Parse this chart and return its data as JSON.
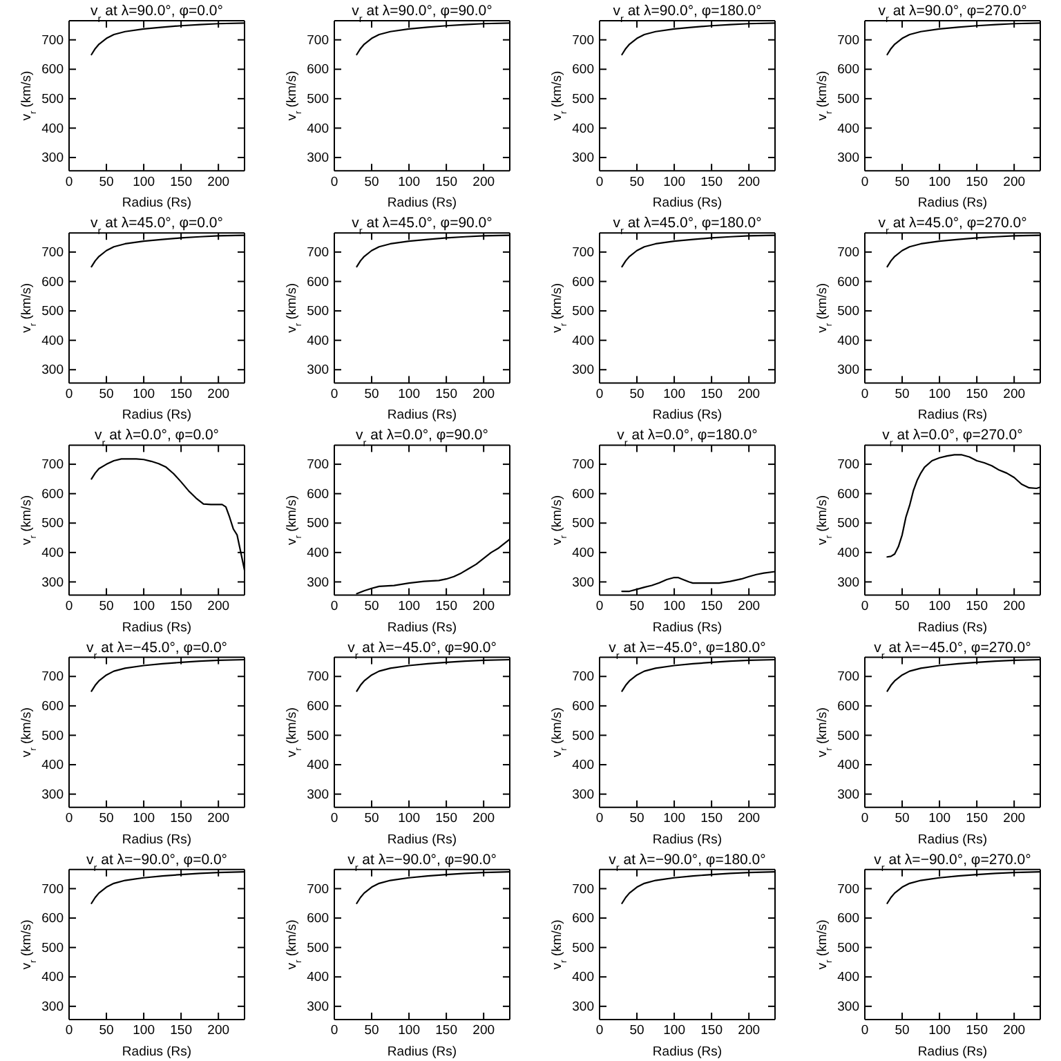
{
  "chart_data": [
    {
      "type": "line",
      "title": "v$_{r}$ at λ=90.0°, φ=0.0°",
      "xlabel": "Radius (Rs)",
      "ylabel": "v$_{r}$ (km/s)",
      "xlim": [
        0,
        235
      ],
      "ylim": [
        255,
        765
      ],
      "xticks": [
        0,
        50,
        100,
        150,
        200
      ],
      "yticks": [
        300,
        400,
        500,
        600,
        700
      ],
      "x": [
        30,
        35,
        40,
        50,
        60,
        75,
        100,
        125,
        150,
        175,
        200,
        235
      ],
      "values": [
        650,
        670,
        685,
        705,
        718,
        728,
        737,
        743,
        748,
        752,
        755,
        757
      ],
      "color": "#000000"
    },
    {
      "type": "line",
      "title": "v$_{r}$ at λ=90.0°, φ=90.0°",
      "xlabel": "Radius (Rs)",
      "ylabel": "v$_{r}$ (km/s)",
      "xlim": [
        0,
        235
      ],
      "ylim": [
        255,
        765
      ],
      "xticks": [
        0,
        50,
        100,
        150,
        200
      ],
      "yticks": [
        300,
        400,
        500,
        600,
        700
      ],
      "x": [
        30,
        35,
        40,
        50,
        60,
        75,
        100,
        125,
        150,
        175,
        200,
        235
      ],
      "values": [
        650,
        670,
        685,
        705,
        718,
        728,
        737,
        743,
        748,
        752,
        755,
        757
      ],
      "color": "#000000"
    },
    {
      "type": "line",
      "title": "v$_{r}$ at λ=90.0°, φ=180.0°",
      "xlabel": "Radius (Rs)",
      "ylabel": "v$_{r}$ (km/s)",
      "xlim": [
        0,
        235
      ],
      "ylim": [
        255,
        765
      ],
      "xticks": [
        0,
        50,
        100,
        150,
        200
      ],
      "yticks": [
        300,
        400,
        500,
        600,
        700
      ],
      "x": [
        30,
        35,
        40,
        50,
        60,
        75,
        100,
        125,
        150,
        175,
        200,
        235
      ],
      "values": [
        650,
        670,
        685,
        705,
        718,
        728,
        737,
        743,
        748,
        752,
        755,
        757
      ],
      "color": "#000000"
    },
    {
      "type": "line",
      "title": "v$_{r}$ at λ=90.0°, φ=270.0°",
      "xlabel": "Radius (Rs)",
      "ylabel": "v$_{r}$ (km/s)",
      "xlim": [
        0,
        235
      ],
      "ylim": [
        255,
        765
      ],
      "xticks": [
        0,
        50,
        100,
        150,
        200
      ],
      "yticks": [
        300,
        400,
        500,
        600,
        700
      ],
      "x": [
        30,
        35,
        40,
        50,
        60,
        75,
        100,
        125,
        150,
        175,
        200,
        235
      ],
      "values": [
        650,
        670,
        685,
        705,
        718,
        728,
        737,
        743,
        748,
        752,
        755,
        757
      ],
      "color": "#000000"
    },
    {
      "type": "line",
      "title": "v$_{r}$ at λ=45.0°, φ=0.0°",
      "xlabel": "Radius (Rs)",
      "ylabel": "v$_{r}$ (km/s)",
      "xlim": [
        0,
        235
      ],
      "ylim": [
        255,
        765
      ],
      "xticks": [
        0,
        50,
        100,
        150,
        200
      ],
      "yticks": [
        300,
        400,
        500,
        600,
        700
      ],
      "x": [
        30,
        35,
        40,
        50,
        60,
        75,
        100,
        125,
        150,
        175,
        200,
        235
      ],
      "values": [
        650,
        670,
        685,
        705,
        718,
        728,
        737,
        743,
        748,
        752,
        755,
        757
      ],
      "color": "#000000"
    },
    {
      "type": "line",
      "title": "v$_{r}$ at λ=45.0°, φ=90.0°",
      "xlabel": "Radius (Rs)",
      "ylabel": "v$_{r}$ (km/s)",
      "xlim": [
        0,
        235
      ],
      "ylim": [
        255,
        765
      ],
      "xticks": [
        0,
        50,
        100,
        150,
        200
      ],
      "yticks": [
        300,
        400,
        500,
        600,
        700
      ],
      "x": [
        30,
        35,
        40,
        50,
        60,
        75,
        100,
        125,
        150,
        175,
        200,
        235
      ],
      "values": [
        650,
        670,
        685,
        705,
        718,
        728,
        737,
        743,
        748,
        752,
        755,
        757
      ],
      "color": "#000000"
    },
    {
      "type": "line",
      "title": "v$_{r}$ at λ=45.0°, φ=180.0°",
      "xlabel": "Radius (Rs)",
      "ylabel": "v$_{r}$ (km/s)",
      "xlim": [
        0,
        235
      ],
      "ylim": [
        255,
        765
      ],
      "xticks": [
        0,
        50,
        100,
        150,
        200
      ],
      "yticks": [
        300,
        400,
        500,
        600,
        700
      ],
      "x": [
        30,
        35,
        40,
        50,
        60,
        75,
        100,
        125,
        150,
        175,
        200,
        235
      ],
      "values": [
        650,
        670,
        685,
        705,
        718,
        728,
        737,
        743,
        748,
        752,
        755,
        757
      ],
      "color": "#000000"
    },
    {
      "type": "line",
      "title": "v$_{r}$ at λ=45.0°, φ=270.0°",
      "xlabel": "Radius (Rs)",
      "ylabel": "v$_{r}$ (km/s)",
      "xlim": [
        0,
        235
      ],
      "ylim": [
        255,
        765
      ],
      "xticks": [
        0,
        50,
        100,
        150,
        200
      ],
      "yticks": [
        300,
        400,
        500,
        600,
        700
      ],
      "x": [
        30,
        35,
        40,
        50,
        60,
        75,
        100,
        125,
        150,
        175,
        200,
        235
      ],
      "values": [
        650,
        670,
        685,
        705,
        718,
        728,
        737,
        743,
        748,
        752,
        755,
        757
      ],
      "color": "#000000"
    },
    {
      "type": "line",
      "title": "v$_{r}$ at λ=0.0°, φ=0.0°",
      "xlabel": "Radius (Rs)",
      "ylabel": "v$_{r}$ (km/s)",
      "xlim": [
        0,
        235
      ],
      "ylim": [
        255,
        765
      ],
      "xticks": [
        0,
        50,
        100,
        150,
        200
      ],
      "yticks": [
        300,
        400,
        500,
        600,
        700
      ],
      "x": [
        30,
        35,
        40,
        50,
        60,
        70,
        90,
        100,
        110,
        120,
        130,
        140,
        150,
        160,
        170,
        180,
        190,
        205,
        210,
        215,
        220,
        225,
        230,
        235
      ],
      "values": [
        650,
        670,
        685,
        700,
        712,
        718,
        718,
        716,
        710,
        702,
        690,
        668,
        640,
        610,
        585,
        565,
        563,
        563,
        555,
        520,
        480,
        460,
        400,
        340
      ],
      "color": "#000000"
    },
    {
      "type": "line",
      "title": "v$_{r}$ at λ=0.0°, φ=90.0°",
      "xlabel": "Radius (Rs)",
      "ylabel": "v$_{r}$ (km/s)",
      "xlim": [
        0,
        235
      ],
      "ylim": [
        255,
        765
      ],
      "xticks": [
        0,
        50,
        100,
        150,
        200
      ],
      "yticks": [
        300,
        400,
        500,
        600,
        700
      ],
      "x": [
        30,
        40,
        50,
        60,
        80,
        100,
        120,
        140,
        150,
        160,
        170,
        180,
        190,
        200,
        210,
        220,
        230,
        235
      ],
      "values": [
        260,
        270,
        278,
        285,
        288,
        296,
        302,
        305,
        310,
        318,
        330,
        345,
        360,
        380,
        400,
        415,
        435,
        445
      ],
      "color": "#000000"
    },
    {
      "type": "line",
      "title": "v$_{r}$ at λ=0.0°, φ=180.0°",
      "xlabel": "Radius (Rs)",
      "ylabel": "v$_{r}$ (km/s)",
      "xlim": [
        0,
        235
      ],
      "ylim": [
        255,
        765
      ],
      "xticks": [
        0,
        50,
        100,
        150,
        200
      ],
      "yticks": [
        300,
        400,
        500,
        600,
        700
      ],
      "x": [
        30,
        40,
        50,
        60,
        70,
        80,
        90,
        100,
        105,
        110,
        120,
        125,
        140,
        160,
        175,
        190,
        200,
        210,
        220,
        235
      ],
      "values": [
        268,
        268,
        275,
        282,
        288,
        297,
        308,
        315,
        315,
        310,
        300,
        296,
        296,
        296,
        302,
        310,
        318,
        325,
        330,
        335
      ],
      "color": "#000000"
    },
    {
      "type": "line",
      "title": "v$_{r}$ at λ=0.0°, φ=270.0°",
      "xlabel": "Radius (Rs)",
      "ylabel": "v$_{r}$ (km/s)",
      "xlim": [
        0,
        235
      ],
      "ylim": [
        255,
        765
      ],
      "xticks": [
        0,
        50,
        100,
        150,
        200
      ],
      "yticks": [
        300,
        400,
        500,
        600,
        700
      ],
      "x": [
        30,
        35,
        40,
        45,
        50,
        55,
        60,
        65,
        70,
        75,
        80,
        90,
        100,
        110,
        120,
        130,
        140,
        150,
        160,
        170,
        180,
        190,
        200,
        210,
        220,
        230,
        235
      ],
      "values": [
        385,
        387,
        395,
        420,
        460,
        520,
        560,
        610,
        645,
        670,
        690,
        712,
        722,
        728,
        732,
        732,
        725,
        712,
        705,
        695,
        680,
        670,
        655,
        632,
        620,
        618,
        622
      ],
      "color": "#000000"
    },
    {
      "type": "line",
      "title": "v$_{r}$ at λ=−45.0°, φ=0.0°",
      "xlabel": "Radius (Rs)",
      "ylabel": "v$_{r}$ (km/s)",
      "xlim": [
        0,
        235
      ],
      "ylim": [
        255,
        765
      ],
      "xticks": [
        0,
        50,
        100,
        150,
        200
      ],
      "yticks": [
        300,
        400,
        500,
        600,
        700
      ],
      "x": [
        30,
        35,
        40,
        50,
        60,
        75,
        100,
        125,
        150,
        175,
        200,
        235
      ],
      "values": [
        650,
        670,
        685,
        705,
        718,
        728,
        737,
        743,
        748,
        752,
        755,
        757
      ],
      "color": "#000000"
    },
    {
      "type": "line",
      "title": "v$_{r}$ at λ=−45.0°, φ=90.0°",
      "xlabel": "Radius (Rs)",
      "ylabel": "v$_{r}$ (km/s)",
      "xlim": [
        0,
        235
      ],
      "ylim": [
        255,
        765
      ],
      "xticks": [
        0,
        50,
        100,
        150,
        200
      ],
      "yticks": [
        300,
        400,
        500,
        600,
        700
      ],
      "x": [
        30,
        35,
        40,
        50,
        60,
        75,
        100,
        125,
        150,
        175,
        200,
        235
      ],
      "values": [
        650,
        670,
        685,
        705,
        718,
        728,
        737,
        743,
        748,
        752,
        755,
        757
      ],
      "color": "#000000"
    },
    {
      "type": "line",
      "title": "v$_{r}$ at λ=−45.0°, φ=180.0°",
      "xlabel": "Radius (Rs)",
      "ylabel": "v$_{r}$ (km/s)",
      "xlim": [
        0,
        235
      ],
      "ylim": [
        255,
        765
      ],
      "xticks": [
        0,
        50,
        100,
        150,
        200
      ],
      "yticks": [
        300,
        400,
        500,
        600,
        700
      ],
      "x": [
        30,
        35,
        40,
        50,
        60,
        75,
        100,
        125,
        150,
        175,
        200,
        235
      ],
      "values": [
        650,
        670,
        685,
        705,
        718,
        728,
        737,
        743,
        748,
        752,
        755,
        757
      ],
      "color": "#000000"
    },
    {
      "type": "line",
      "title": "v$_{r}$ at λ=−45.0°, φ=270.0°",
      "xlabel": "Radius (Rs)",
      "ylabel": "v$_{r}$ (km/s)",
      "xlim": [
        0,
        235
      ],
      "ylim": [
        255,
        765
      ],
      "xticks": [
        0,
        50,
        100,
        150,
        200
      ],
      "yticks": [
        300,
        400,
        500,
        600,
        700
      ],
      "x": [
        30,
        35,
        40,
        50,
        60,
        75,
        100,
        125,
        150,
        175,
        200,
        235
      ],
      "values": [
        650,
        670,
        685,
        705,
        718,
        728,
        737,
        743,
        748,
        752,
        755,
        757
      ],
      "color": "#000000"
    },
    {
      "type": "line",
      "title": "v$_{r}$ at λ=−90.0°, φ=0.0°",
      "xlabel": "Radius (Rs)",
      "ylabel": "v$_{r}$ (km/s)",
      "xlim": [
        0,
        235
      ],
      "ylim": [
        255,
        765
      ],
      "xticks": [
        0,
        50,
        100,
        150,
        200
      ],
      "yticks": [
        300,
        400,
        500,
        600,
        700
      ],
      "x": [
        30,
        35,
        40,
        50,
        60,
        75,
        100,
        125,
        150,
        175,
        200,
        235
      ],
      "values": [
        650,
        670,
        685,
        705,
        718,
        728,
        737,
        743,
        748,
        752,
        755,
        757
      ],
      "color": "#000000"
    },
    {
      "type": "line",
      "title": "v$_{r}$ at λ=−90.0°, φ=90.0°",
      "xlabel": "Radius (Rs)",
      "ylabel": "v$_{r}$ (km/s)",
      "xlim": [
        0,
        235
      ],
      "ylim": [
        255,
        765
      ],
      "xticks": [
        0,
        50,
        100,
        150,
        200
      ],
      "yticks": [
        300,
        400,
        500,
        600,
        700
      ],
      "x": [
        30,
        35,
        40,
        50,
        60,
        75,
        100,
        125,
        150,
        175,
        200,
        235
      ],
      "values": [
        650,
        670,
        685,
        705,
        718,
        728,
        737,
        743,
        748,
        752,
        755,
        757
      ],
      "color": "#000000"
    },
    {
      "type": "line",
      "title": "v$_{r}$ at λ=−90.0°, φ=180.0°",
      "xlabel": "Radius (Rs)",
      "ylabel": "v$_{r}$ (km/s)",
      "xlim": [
        0,
        235
      ],
      "ylim": [
        255,
        765
      ],
      "xticks": [
        0,
        50,
        100,
        150,
        200
      ],
      "yticks": [
        300,
        400,
        500,
        600,
        700
      ],
      "x": [
        30,
        35,
        40,
        50,
        60,
        75,
        100,
        125,
        150,
        175,
        200,
        235
      ],
      "values": [
        650,
        670,
        685,
        705,
        718,
        728,
        737,
        743,
        748,
        752,
        755,
        757
      ],
      "color": "#000000"
    },
    {
      "type": "line",
      "title": "v$_{r}$ at λ=−90.0°, φ=270.0°",
      "xlabel": "Radius (Rs)",
      "ylabel": "v$_{r}$ (km/s)",
      "xlim": [
        0,
        235
      ],
      "ylim": [
        255,
        765
      ],
      "xticks": [
        0,
        50,
        100,
        150,
        200
      ],
      "yticks": [
        300,
        400,
        500,
        600,
        700
      ],
      "x": [
        30,
        35,
        40,
        50,
        60,
        75,
        100,
        125,
        150,
        175,
        200,
        235
      ],
      "values": [
        650,
        670,
        685,
        705,
        718,
        728,
        737,
        743,
        748,
        752,
        755,
        757
      ],
      "color": "#000000"
    }
  ]
}
